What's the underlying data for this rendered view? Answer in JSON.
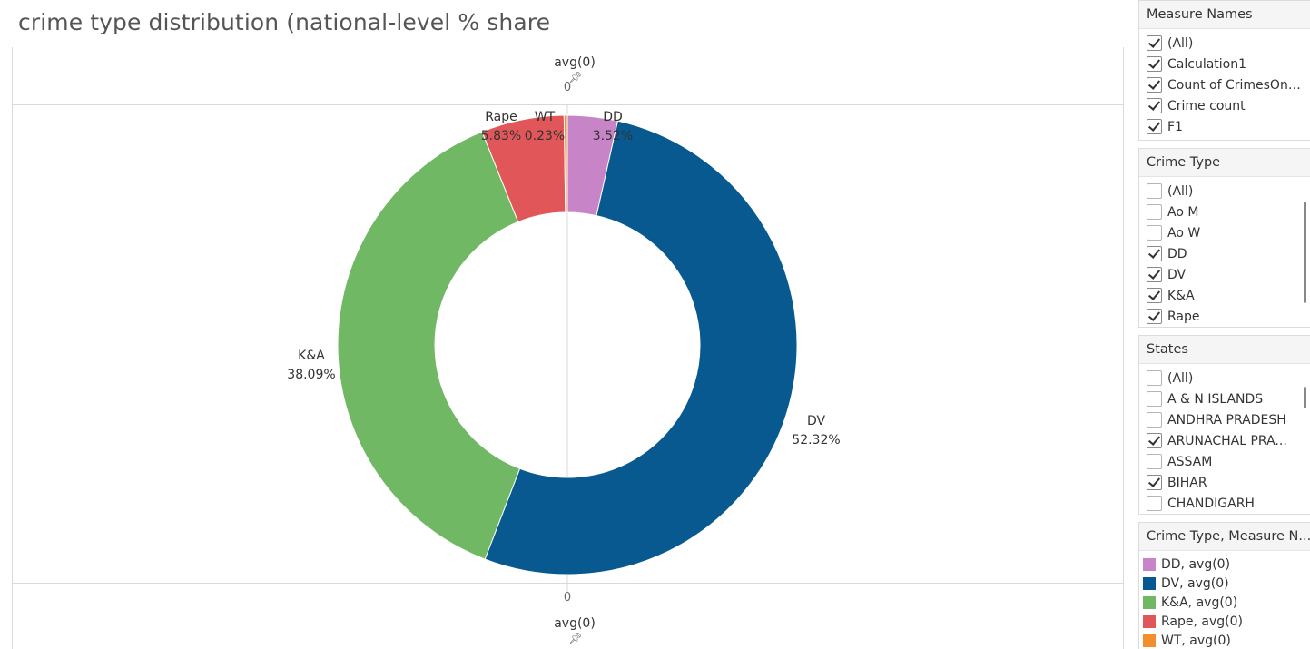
{
  "title": "crime type distribution (national-level % share",
  "chart": {
    "axis_header": "avg(0)",
    "axis_zero": "0",
    "pin_icon": "pin-icon"
  },
  "chart_data": {
    "type": "pie",
    "title": "crime type distribution (national-level % share",
    "donut": true,
    "slices": [
      {
        "name": "DD",
        "value": 3.52,
        "label": "3.52%",
        "color": "#C785C8"
      },
      {
        "name": "DV",
        "value": 52.32,
        "label": "52.32%",
        "color": "#07598F"
      },
      {
        "name": "K&A",
        "value": 38.09,
        "label": "38.09%",
        "color": "#70B864"
      },
      {
        "name": "Rape",
        "value": 5.83,
        "label": "5.83%",
        "color": "#E15759"
      },
      {
        "name": "WT",
        "value": 0.23,
        "label": "0.23%",
        "color": "#F28E2B"
      }
    ]
  },
  "filters": [
    {
      "title": "Measure Names",
      "items": [
        {
          "label": "(All)",
          "checked": true
        },
        {
          "label": "Calculation1",
          "checked": true
        },
        {
          "label": "Count of CrimesOnW...",
          "checked": true
        },
        {
          "label": "Crime count",
          "checked": true
        },
        {
          "label": "F1",
          "checked": true
        }
      ]
    },
    {
      "title": "Crime Type",
      "items": [
        {
          "label": "(All)",
          "checked": false
        },
        {
          "label": "Ao M",
          "checked": false
        },
        {
          "label": "Ao W",
          "checked": false
        },
        {
          "label": "DD",
          "checked": true
        },
        {
          "label": "DV",
          "checked": true
        },
        {
          "label": "K&A",
          "checked": true
        },
        {
          "label": "Rape",
          "checked": true
        }
      ]
    },
    {
      "title": "States",
      "items": [
        {
          "label": "(All)",
          "checked": false
        },
        {
          "label": "A & N ISLANDS",
          "checked": false
        },
        {
          "label": "ANDHRA PRADESH",
          "checked": false
        },
        {
          "label": "ARUNACHAL PRA...",
          "checked": true
        },
        {
          "label": "ASSAM",
          "checked": false
        },
        {
          "label": "BIHAR",
          "checked": true
        },
        {
          "label": "CHANDIGARH",
          "checked": false
        }
      ]
    }
  ],
  "legend": {
    "title": "Crime Type, Measure N...",
    "items": [
      {
        "label": "DD, avg(0)",
        "color": "#C785C8"
      },
      {
        "label": "DV, avg(0)",
        "color": "#07598F"
      },
      {
        "label": "K&A, avg(0)",
        "color": "#70B864"
      },
      {
        "label": "Rape, avg(0)",
        "color": "#E15759"
      },
      {
        "label": "WT, avg(0)",
        "color": "#F28E2B"
      }
    ]
  }
}
